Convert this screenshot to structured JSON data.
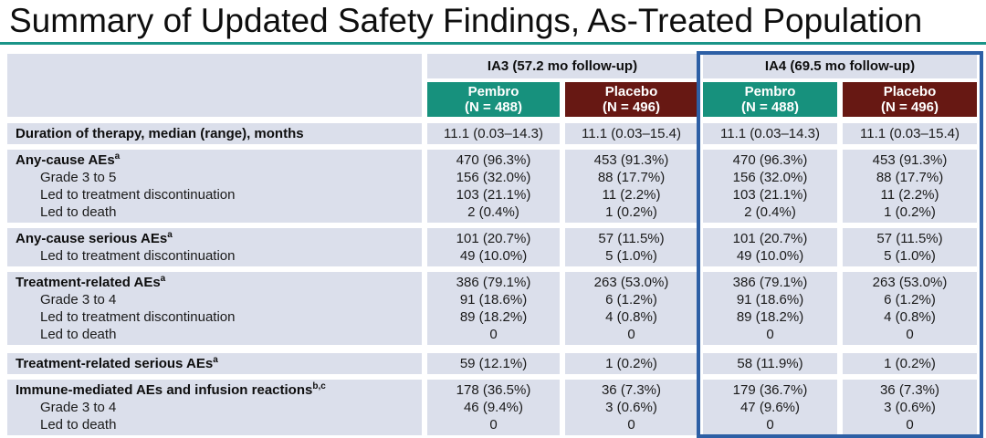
{
  "title": "Summary of Updated Safety Findings, As-Treated Population",
  "accent_colors": {
    "title_underline_teal": "#1a9488",
    "pembro_teal": "#17917d",
    "placebo_maroon": "#671813",
    "row_band": "#dbdfeb",
    "ia4_highlight_border": "#2d5fa5"
  },
  "table": {
    "column_groups": [
      {
        "label": "IA3 (57.2 mo follow-up)",
        "highlighted": false
      },
      {
        "label": "IA4 (69.5 mo follow-up)",
        "highlighted": true
      }
    ],
    "arm_headers": [
      {
        "name": "Pembro",
        "n": "(N = 488)"
      },
      {
        "name": "Placebo",
        "n": "(N = 496)"
      },
      {
        "name": "Pembro",
        "n": "(N = 488)"
      },
      {
        "name": "Placebo",
        "n": "(N = 496)"
      }
    ],
    "row_groups": [
      {
        "rows": [
          {
            "label": "Duration of therapy, median (range), months",
            "indent": false,
            "values": [
              "11.1 (0.03–14.3)",
              "11.1 (0.03–15.4)",
              "11.1 (0.03–14.3)",
              "11.1 (0.03–15.4)"
            ]
          }
        ]
      },
      {
        "rows": [
          {
            "label": "Any-cause AEs",
            "sup": "a",
            "indent": false,
            "values": [
              "470 (96.3%)",
              "453 (91.3%)",
              "470 (96.3%)",
              "453 (91.3%)"
            ]
          },
          {
            "label": "Grade 3 to 5",
            "indent": true,
            "values": [
              "156 (32.0%)",
              "88 (17.7%)",
              "156 (32.0%)",
              "88 (17.7%)"
            ]
          },
          {
            "label": "Led to treatment discontinuation",
            "indent": true,
            "values": [
              "103 (21.1%)",
              "11 (2.2%)",
              "103 (21.1%)",
              "11 (2.2%)"
            ]
          },
          {
            "label": "Led to death",
            "indent": true,
            "values": [
              "2 (0.4%)",
              "1 (0.2%)",
              "2 (0.4%)",
              "1 (0.2%)"
            ]
          }
        ]
      },
      {
        "rows": [
          {
            "label": "Any-cause serious AEs",
            "sup": "a",
            "indent": false,
            "values": [
              "101 (20.7%)",
              "57 (11.5%)",
              "101 (20.7%)",
              "57 (11.5%)"
            ]
          },
          {
            "label": "Led to treatment discontinuation",
            "indent": true,
            "values": [
              "49 (10.0%)",
              "5 (1.0%)",
              "49 (10.0%)",
              "5 (1.0%)"
            ]
          }
        ]
      },
      {
        "rows": [
          {
            "label": "Treatment-related AEs",
            "sup": "a",
            "indent": false,
            "values": [
              "386 (79.1%)",
              "263 (53.0%)",
              "386 (79.1%)",
              "263 (53.0%)"
            ]
          },
          {
            "label": "Grade 3 to 4",
            "indent": true,
            "values": [
              "91 (18.6%)",
              "6 (1.2%)",
              "91 (18.6%)",
              "6 (1.2%)"
            ]
          },
          {
            "label": "Led to treatment discontinuation",
            "indent": true,
            "values": [
              "89 (18.2%)",
              "4 (0.8%)",
              "89 (18.2%)",
              "4 (0.8%)"
            ]
          },
          {
            "label": "Led to death",
            "indent": true,
            "values": [
              "0",
              "0",
              "0",
              "0"
            ]
          }
        ]
      },
      {
        "rows": [
          {
            "label": "Treatment-related serious AEs",
            "sup": "a",
            "indent": false,
            "values": [
              "59 (12.1%)",
              "1 (0.2%)",
              "58 (11.9%)",
              "1 (0.2%)"
            ]
          }
        ]
      },
      {
        "rows": [
          {
            "label": "Immune-mediated AEs and infusion reactions",
            "sup": "b,c",
            "indent": false,
            "values": [
              "178 (36.5%)",
              "36 (7.3%)",
              "179 (36.7%)",
              "36 (7.3%)"
            ]
          },
          {
            "label": "Grade 3 to 4",
            "indent": true,
            "values": [
              "46 (9.4%)",
              "3 (0.6%)",
              "47 (9.6%)",
              "3 (0.6%)"
            ]
          },
          {
            "label": "Led to death",
            "indent": true,
            "values": [
              "0",
              "0",
              "0",
              "0"
            ]
          }
        ]
      }
    ]
  }
}
